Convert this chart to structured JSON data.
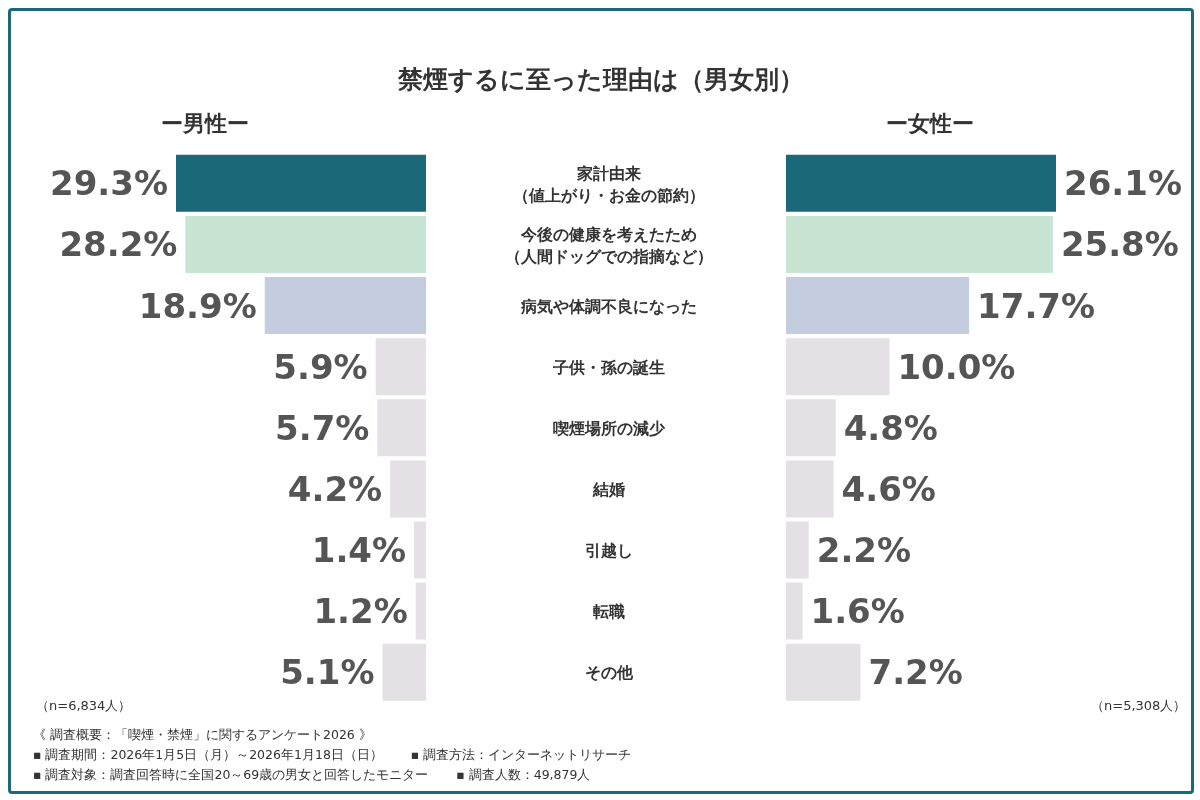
{
  "chart_data": [
    {
      "type": "bar",
      "orientation": "horizontal",
      "title": "禁煙するに至った理由は（男女別）",
      "subtitle": "ー男性ー",
      "categories": [
        "家計由来（値上がり・お金の節約）",
        "今後の健康を考えたため（人間ドッグでの指摘など）",
        "病気や体調不良になった",
        "子供・孫の誕生",
        "喫煙場所の減少",
        "結婚",
        "引越し",
        "転職",
        "その他"
      ],
      "values": [
        29.3,
        28.2,
        18.9,
        5.9,
        5.7,
        4.2,
        1.4,
        1.2,
        5.1
      ],
      "colors": [
        "#1b6878",
        "#c8e4d3",
        "#c4cce0",
        "#e3e1e4",
        "#e3e1e4",
        "#e3e1e4",
        "#e3e1e4",
        "#e3e1e4",
        "#e3e1e4"
      ],
      "value_labels": [
        "29.3%",
        "28.2%",
        "18.9%",
        "5.9%",
        "5.7%",
        "4.2%",
        "1.4%",
        "1.2%",
        "5.1%"
      ],
      "annotations": [
        "（n=6,834人）",
        "《 調査概要：「喫煙・禁煙」に関するアンケート2026 》",
        "▪ 調査期間：2026年1月5日（月）～2026年1月18日（日）",
        "▪ 調査方法：インターネットリサーチ",
        "▪ 調査対象：調査回答時に全国20～69歳の男女と回答したモニター",
        "▪ 調査人数：49,879人"
      ]
    },
    {
      "type": "bar",
      "orientation": "horizontal",
      "subtitle": "ー女性ー",
      "values": [
        26.1,
        25.8,
        17.7,
        10.0,
        4.8,
        4.6,
        2.2,
        1.6,
        7.2
      ],
      "colors": [
        "#1b6878",
        "#c8e4d3",
        "#c4cce0",
        "#e3e1e4",
        "#e3e1e4",
        "#e3e1e4",
        "#e3e1e4",
        "#e3e1e4",
        "#e3e1e4"
      ],
      "value_labels": [
        "26.1%",
        "25.8%",
        "17.7%",
        "10.0%",
        "4.8%",
        "4.6%",
        "2.2%",
        "1.6%",
        "7.2%"
      ],
      "annotations": [
        "（n=5,308人）"
      ]
    }
  ]
}
